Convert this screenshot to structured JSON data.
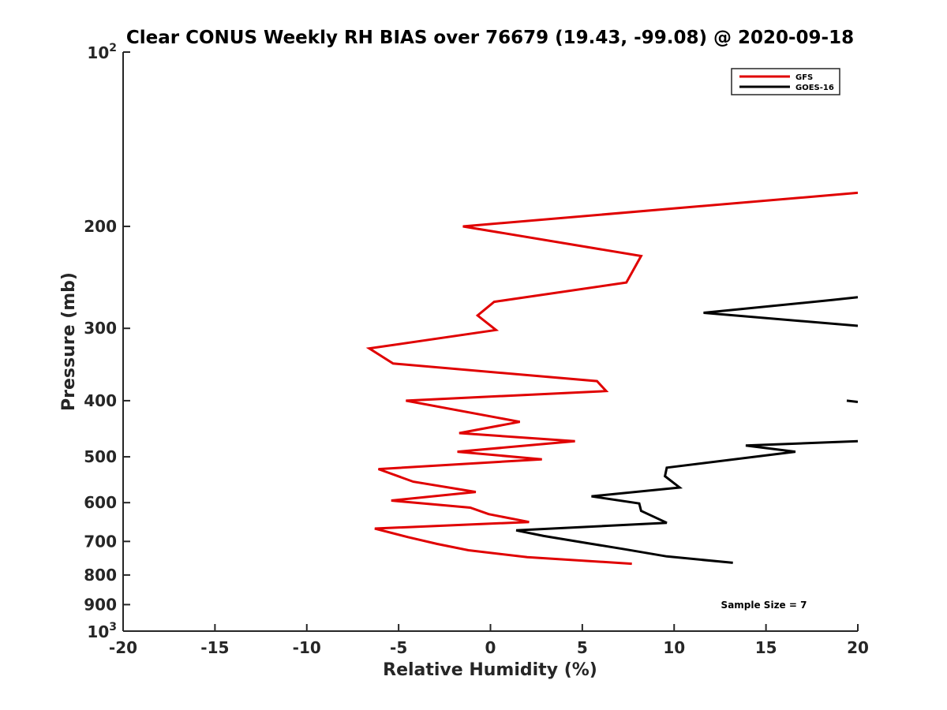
{
  "chart_data": {
    "type": "line",
    "title": "Clear CONUS Weekly RH BIAS over 76679 (19.43, -99.08) @ 2020-09-18",
    "xlabel": "Relative Humidity (%)",
    "ylabel": "Pressure (mb)",
    "xlim": [
      -20,
      20
    ],
    "ylim": [
      100,
      1000
    ],
    "y_scale": "log",
    "y_reversed": true,
    "grid": false,
    "x_ticks": [
      -20,
      -15,
      -10,
      -5,
      0,
      5,
      10,
      15,
      20
    ],
    "x_tick_labels": [
      "-20",
      "-15",
      "-10",
      "-5",
      "0",
      "5",
      "10",
      "15",
      "20"
    ],
    "y_ticks": [
      200,
      300,
      400,
      500,
      600,
      700,
      800,
      900
    ],
    "y_tick_labels": [
      "200",
      "300",
      "400",
      "500",
      "600",
      "700",
      "800",
      "900"
    ],
    "y_end_ticks": [
      {
        "value": 100,
        "base": "10",
        "exp": "2"
      },
      {
        "value": 1000,
        "base": "10",
        "exp": "3"
      }
    ],
    "legend": {
      "placement": "top-right"
    },
    "annotation": "Sample Size = 7",
    "series": [
      {
        "name": "GFS",
        "color": "#e00000",
        "points": [
          [
            20.0,
            175
          ],
          [
            -1.5,
            200
          ],
          [
            8.2,
            225
          ],
          [
            7.4,
            250
          ],
          [
            0.2,
            270
          ],
          [
            -0.7,
            285
          ],
          [
            0.3,
            302
          ],
          [
            -6.6,
            325
          ],
          [
            -5.3,
            345
          ],
          [
            5.8,
            370
          ],
          [
            6.3,
            385
          ],
          [
            -4.6,
            400
          ],
          [
            1.6,
            435
          ],
          [
            -1.7,
            455
          ],
          [
            4.6,
            470
          ],
          [
            -1.8,
            490
          ],
          [
            2.8,
            505
          ],
          [
            -6.1,
            525
          ],
          [
            -4.2,
            552
          ],
          [
            -0.8,
            575
          ],
          [
            -5.4,
            595
          ],
          [
            -1.1,
            612
          ],
          [
            -0.1,
            628
          ],
          [
            2.1,
            648
          ],
          [
            -6.3,
            665
          ],
          [
            -4.5,
            688
          ],
          [
            -2.9,
            707
          ],
          [
            -1.2,
            725
          ],
          [
            2.0,
            745
          ],
          [
            7.7,
            765
          ]
        ]
      },
      {
        "name": "GOES-16",
        "color": "#000000",
        "segments": [
          [
            [
              20.0,
              265
            ],
            [
              18.6,
              268
            ],
            [
              11.6,
              282
            ],
            [
              20.0,
              297
            ]
          ],
          [
            [
              19.4,
              400
            ],
            [
              20.0,
              402
            ]
          ],
          [
            [
              20.0,
              470
            ],
            [
              13.9,
              478
            ],
            [
              16.6,
              490
            ],
            [
              9.6,
              522
            ],
            [
              9.5,
              540
            ],
            [
              10.3,
              565
            ],
            [
              5.5,
              585
            ],
            [
              8.1,
              602
            ],
            [
              8.2,
              620
            ],
            [
              9.6,
              650
            ],
            [
              1.4,
              670
            ],
            [
              2.9,
              685
            ],
            [
              5.3,
              705
            ],
            [
              7.3,
              722
            ],
            [
              9.6,
              743
            ],
            [
              13.2,
              762
            ]
          ]
        ]
      }
    ]
  }
}
